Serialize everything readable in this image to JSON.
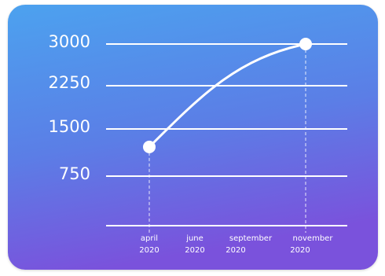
{
  "colors": {
    "gradient_top": "#4ca2ef",
    "gradient_mid": "#5b7ee6",
    "gradient_bottom": "#7a52dc",
    "line": "#ffffff"
  },
  "chart_data": {
    "type": "line",
    "title": "",
    "xlabel": "",
    "ylabel": "",
    "x_ticks": [
      {
        "label": "april",
        "sub": "2020"
      },
      {
        "label": "june",
        "sub": "2020"
      },
      {
        "label": "september",
        "sub": "2020"
      },
      {
        "label": "november",
        "sub": "2020"
      }
    ],
    "y_ticks": [
      "3000",
      "2250",
      "1500",
      "750"
    ],
    "ylim": [
      0,
      3000
    ],
    "grid": true,
    "series": [
      {
        "points": [
          {
            "x": "april 2020",
            "y": 1300
          },
          {
            "x": "november 2020",
            "y": 3000
          }
        ]
      }
    ]
  }
}
